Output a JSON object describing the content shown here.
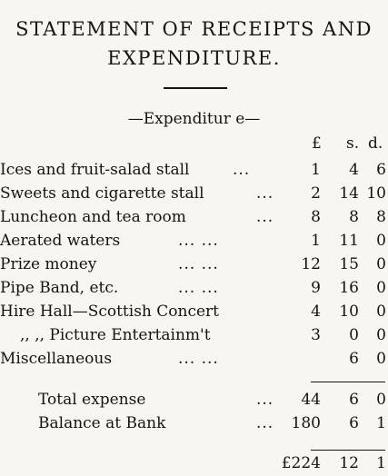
{
  "title": {
    "line1": "STATEMENT OF RECEIPTS AND",
    "line2": "EXPENDITURE."
  },
  "section_heading": "—Expenditur e—",
  "columns": {
    "pounds": "£",
    "shillings": "s.",
    "pence": "d."
  },
  "items": [
    {
      "label": "Ices and fruit-salad stall",
      "dots": "...",
      "l": "1",
      "s": "4",
      "d": "6"
    },
    {
      "label": "Sweets and cigarette stall",
      "dots": "...",
      "l": "2",
      "s": "14",
      "d": "10"
    },
    {
      "label": "Luncheon and tea room",
      "dots": "...",
      "l": "8",
      "s": "8",
      "d": "8"
    },
    {
      "label": "Aerated waters",
      "dots": "...       ...",
      "l": "1",
      "s": "11",
      "d": "0"
    },
    {
      "label": "Prize money",
      "dots": "...       ...",
      "l": "12",
      "s": "15",
      "d": "0"
    },
    {
      "label": "Pipe Band, etc.",
      "dots": "...       ...",
      "l": "9",
      "s": "16",
      "d": "0"
    },
    {
      "label": "Hire Hall—Scottish Concert",
      "dots": "",
      "l": "4",
      "s": "10",
      "d": "0"
    },
    {
      "label": ",,  ,,   Picture Entertainm't",
      "dots": "",
      "l": "3",
      "s": "0",
      "d": "0"
    },
    {
      "label": "Miscellaneous",
      "dots": "...       ...",
      "l": "",
      "s": "6",
      "d": "0"
    }
  ],
  "totals": [
    {
      "label": "Total expense",
      "dots": "...",
      "l": "44",
      "s": "6",
      "d": "0"
    },
    {
      "label": "Balance at Bank",
      "dots": "...",
      "l": "180",
      "s": "6",
      "d": "1"
    }
  ],
  "grand_total": {
    "l": "£224",
    "s": "12",
    "d": "1"
  }
}
